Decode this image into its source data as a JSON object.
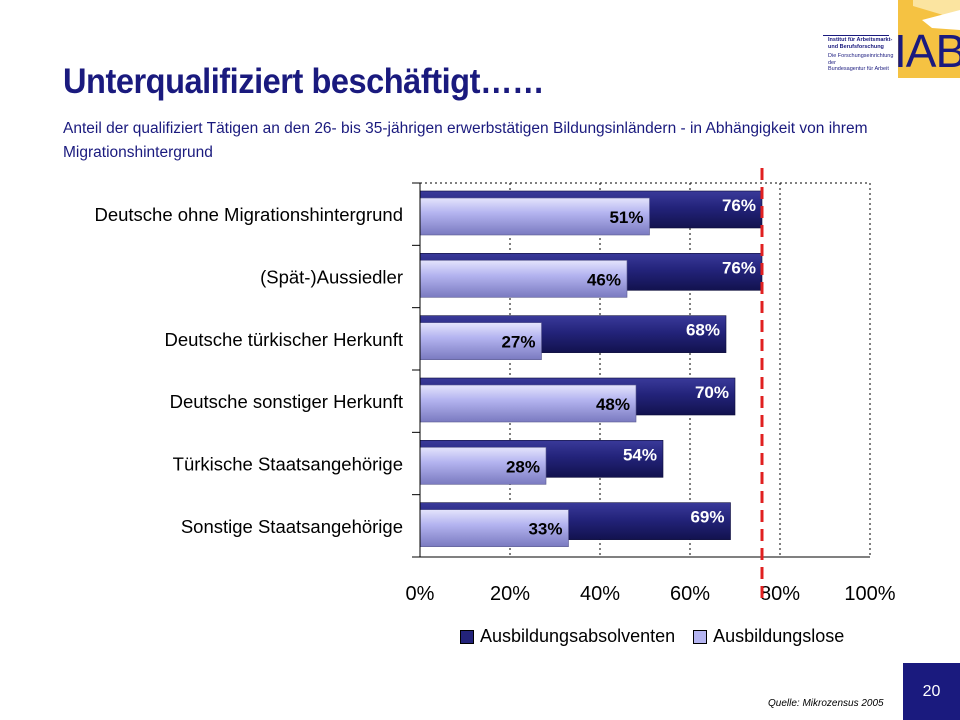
{
  "header": {
    "title": "Unterqualifiziert beschäftigt……",
    "subtitle": "Anteil der qualifiziert Tätigen an den 26- bis 35-jährigen erwerbstätigen Bildungsinländern - in Abhängigkeit von ihrem Migrationshintergrund"
  },
  "logo": {
    "line1": "Institut für Arbeitsmarkt-",
    "line2": "und Berufsforschung",
    "line3": "Die Forschungseinrichtung der",
    "line4": "Bundesagentur für Arbeit",
    "wordmark": "IAB",
    "colors": {
      "navy": "#1a1a7e",
      "gold": "#f5c242"
    }
  },
  "footer": {
    "source": "Quelle: Mikrozensus 2005",
    "page_number": "20"
  },
  "chart_data": {
    "type": "bar",
    "orientation": "horizontal",
    "categories": [
      "Deutsche ohne Migrationshintergrund",
      "(Spät-)Aussiedler",
      "Deutsche türkischer Herkunft",
      "Deutsche sonstiger Herkunft",
      "Türkische Staatsangehörige",
      "Sonstige Staatsangehörige"
    ],
    "series": [
      {
        "name": "Ausbildungsabsolventen",
        "values": [
          76,
          76,
          68,
          70,
          54,
          69
        ],
        "labels": [
          "76%",
          "76%",
          "68%",
          "70%",
          "54%",
          "69%"
        ],
        "color": "#23237a"
      },
      {
        "name": "Ausbildungslose",
        "values": [
          51,
          46,
          27,
          48,
          28,
          33
        ],
        "labels": [
          "51%",
          "46%",
          "27%",
          "48%",
          "28%",
          "33%"
        ],
        "color": "#b4b4f0"
      }
    ],
    "xlim": [
      0,
      100
    ],
    "ticks": [
      "0%",
      "20%",
      "40%",
      "60%",
      "80%",
      "100%"
    ],
    "tick_values": [
      0,
      20,
      40,
      60,
      80,
      100
    ],
    "reference_line": {
      "value": 76,
      "color": "#e02020",
      "style": "dashed"
    },
    "grid": "dotted vertical",
    "legend_position": "bottom"
  }
}
